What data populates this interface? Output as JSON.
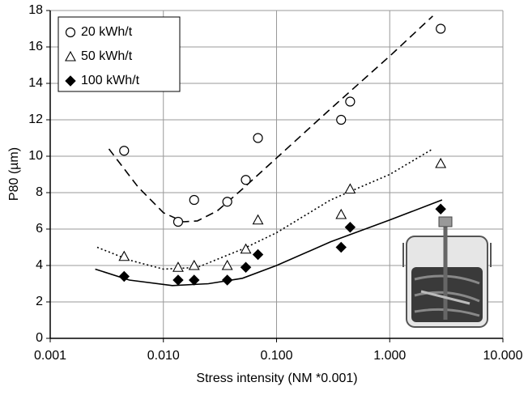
{
  "chart_data": {
    "type": "scatter",
    "x_label": "Stress intensity (NM *0.001)",
    "y_label": "P80 (µm)",
    "xscale": "log",
    "xlim": [
      0.001,
      10
    ],
    "ylim": [
      0,
      18
    ],
    "xticks": [
      {
        "value": 0.001,
        "label": "0.001"
      },
      {
        "value": 0.01,
        "label": "0.010"
      },
      {
        "value": 0.1,
        "label": "0.100"
      },
      {
        "value": 1,
        "label": "1.000"
      },
      {
        "value": 10,
        "label": "10.000"
      }
    ],
    "yticks": [
      0,
      2,
      4,
      6,
      8,
      10,
      12,
      14,
      16,
      18
    ],
    "grid": true,
    "legend": "upper left",
    "series": [
      {
        "name": "20 kWh/t",
        "marker": "circle",
        "color": "#000000",
        "x": [
          0.0045,
          0.0135,
          0.0187,
          0.0367,
          0.0535,
          0.0685,
          0.372,
          0.447,
          2.82
        ],
        "values": [
          10.3,
          6.4,
          7.6,
          7.5,
          8.7,
          11.0,
          12.0,
          13.0,
          17.0
        ]
      },
      {
        "name": "50 kWh/t",
        "marker": "triangle",
        "color": "#000000",
        "x": [
          0.0045,
          0.0135,
          0.0187,
          0.0367,
          0.0535,
          0.0685,
          0.372,
          0.447,
          2.82
        ],
        "values": [
          4.5,
          3.9,
          4.0,
          4.0,
          4.9,
          6.5,
          6.8,
          8.2,
          9.6
        ]
      },
      {
        "name": "100 kWh/t",
        "marker": "diamond",
        "color": "#000000",
        "x": [
          0.0045,
          0.0135,
          0.0187,
          0.0367,
          0.0535,
          0.0685,
          0.372,
          0.447,
          2.82
        ],
        "values": [
          3.4,
          3.2,
          3.2,
          3.2,
          3.9,
          4.6,
          5.0,
          6.1,
          7.1
        ]
      }
    ],
    "trend_lines": [
      {
        "dash": "10,6",
        "color": "#000000",
        "x": [
          0.0033,
          0.006,
          0.01,
          0.015,
          0.02,
          0.03,
          0.05,
          0.1,
          0.3,
          1,
          2.4
        ],
        "values": [
          10.4,
          8.3,
          6.9,
          6.4,
          6.45,
          7.0,
          8.2,
          9.9,
          12.6,
          15.5,
          17.7
        ]
      },
      {
        "dash": "2,3",
        "color": "#000000",
        "x": [
          0.0026,
          0.005,
          0.01,
          0.02,
          0.05,
          0.1,
          0.3,
          1,
          2.4
        ],
        "values": [
          5.0,
          4.3,
          3.8,
          3.9,
          4.9,
          5.8,
          7.6,
          9.0,
          10.4
        ]
      },
      {
        "dash": "none",
        "color": "#000000",
        "x": [
          0.0025,
          0.005,
          0.012,
          0.025,
          0.05,
          0.1,
          0.3,
          1,
          2.9
        ],
        "values": [
          3.8,
          3.2,
          2.9,
          3.0,
          3.3,
          4.0,
          5.3,
          6.5,
          7.6
        ]
      }
    ]
  }
}
